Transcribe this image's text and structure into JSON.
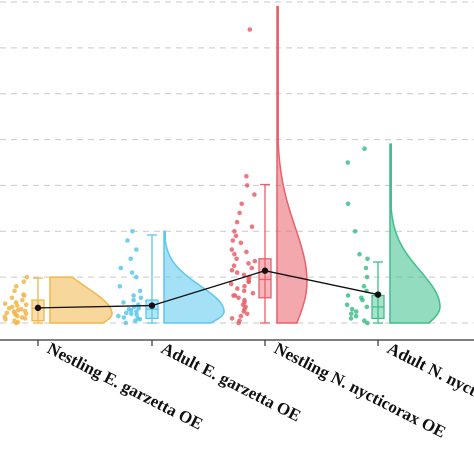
{
  "chart_data": {
    "type": "raincloud",
    "title": "",
    "xlabel": "",
    "ylabel": "",
    "categories": [
      "Nestling E. garzetta OE",
      "Adult E. garzetta OE",
      "Nestling N. nycticorax OE",
      "Adult N. nycticorax OE"
    ],
    "colors": [
      "#F2B64C",
      "#5BC8EE",
      "#E8616A",
      "#3DBF8A"
    ],
    "grid": "horizontal dashed",
    "legend": "none",
    "ylim": [
      0,
      7
    ],
    "box_stats": [
      {
        "whisker_low": 0.0,
        "q1": 0.05,
        "median": 0.32,
        "q3": 0.5,
        "whisker_high": 0.98,
        "mean": 0.33
      },
      {
        "whisker_low": 0.0,
        "q1": 0.1,
        "median": 0.3,
        "q3": 0.5,
        "whisker_high": 1.92,
        "mean": 0.38
      },
      {
        "whisker_low": 0.0,
        "q1": 0.55,
        "median": 0.95,
        "q3": 1.4,
        "whisker_high": 3.02,
        "mean": 1.14
      },
      {
        "whisker_low": 0.0,
        "q1": 0.1,
        "median": 0.35,
        "q3": 0.6,
        "whisker_high": 1.33,
        "mean": 0.62
      }
    ],
    "mean_line": [
      0.33,
      0.38,
      1.14,
      0.62
    ],
    "points": [
      [
        0.0,
        0.05,
        0.1,
        0.12,
        0.15,
        0.18,
        0.2,
        0.22,
        0.25,
        0.28,
        0.3,
        0.32,
        0.35,
        0.4,
        0.45,
        0.5,
        0.55,
        0.6,
        0.7,
        0.8,
        0.9,
        1.0,
        0.08,
        0.14,
        0.26,
        0.38,
        0.42,
        0.62,
        0.02,
        0.2
      ],
      [
        0.0,
        0.05,
        0.1,
        0.15,
        0.2,
        0.25,
        0.3,
        0.35,
        0.4,
        0.45,
        0.5,
        0.6,
        0.7,
        0.8,
        1.0,
        1.2,
        1.4,
        1.6,
        1.8,
        2.0,
        0.12,
        0.22,
        0.32,
        0.18,
        0.28,
        0.08,
        0.55,
        1.1
      ],
      [
        0.0,
        0.05,
        0.1,
        0.2,
        0.3,
        0.4,
        0.5,
        0.6,
        0.7,
        0.8,
        0.9,
        1.0,
        1.1,
        1.2,
        1.3,
        1.4,
        1.5,
        1.6,
        1.8,
        2.0,
        2.2,
        2.4,
        2.6,
        2.8,
        3.0,
        3.2,
        6.4,
        0.35,
        0.55,
        0.75,
        0.95,
        1.15,
        1.35,
        1.55,
        1.75,
        0.45,
        0.65,
        0.85,
        1.05,
        1.25,
        0.15,
        0.25,
        2.1,
        1.9,
        0.6,
        0.9
      ],
      [
        0.0,
        0.05,
        0.1,
        0.2,
        0.3,
        0.4,
        0.5,
        0.6,
        0.8,
        1.0,
        1.2,
        1.4,
        2.0,
        2.6,
        3.5,
        3.8,
        0.15,
        0.35,
        0.55,
        0.25,
        0.7,
        1.5
      ]
    ],
    "density_peak": [
      0.2,
      0.25,
      0.9,
      0.35
    ],
    "density_top": [
      1.0,
      2.0,
      6.9,
      3.9
    ]
  }
}
